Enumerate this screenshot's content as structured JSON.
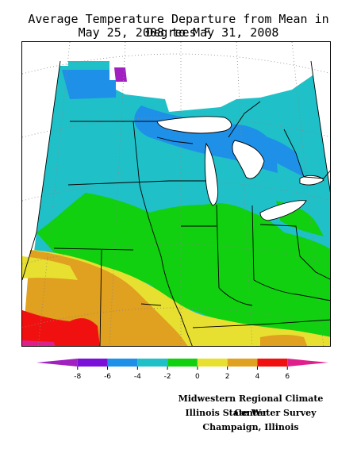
{
  "map": {
    "title_line1": "Average Temperature Departure from Mean in Degrees F",
    "title_line2": "May 25, 2008 to May 31, 2008",
    "legend": {
      "ticks": [
        "-8",
        "-6",
        "-4",
        "-2",
        "0",
        "2",
        "4",
        "6"
      ],
      "colors": [
        "#a020c0",
        "#7b10d8",
        "#1e90e8",
        "#20c0c8",
        "#10d010",
        "#e8e030",
        "#e0a020",
        "#f01010",
        "#e0208a"
      ]
    },
    "credits": {
      "line1": "Midwestern Regional Climate Center",
      "line2": "Illinois State Water Survey",
      "line3": "Champaign, Illinois"
    }
  }
}
